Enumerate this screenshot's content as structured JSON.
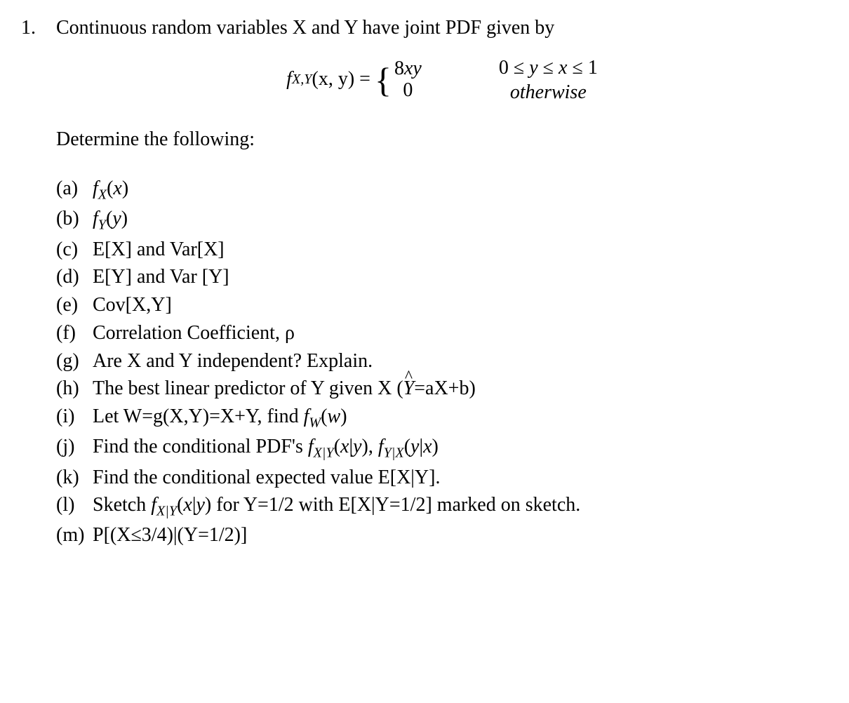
{
  "problem": {
    "number": "1.",
    "intro": "Continuous random variables X and Y have joint PDF given by",
    "equation": {
      "lhs_f": "f",
      "lhs_sub": "X,Y",
      "lhs_args": "(x, y) = ",
      "case_top": "8xy",
      "case_bot": "0",
      "cond_top": "0 ≤ y ≤ x ≤ 1",
      "cond_bot": "otherwise"
    },
    "determine": "Determine the following:",
    "items": [
      {
        "label": "(a)",
        "html": "<span class='ital'>f<span class='sub'>X</span></span>(<span class='ital'>x</span>)"
      },
      {
        "label": "(b)",
        "html": "<span class='ital'>f<span class='sub'>Y</span></span>(<span class='ital'>y</span>)"
      },
      {
        "label": "(c)",
        "html": "E[X] and Var[X]"
      },
      {
        "label": "(d)",
        "html": "E[Y] and Var [Y]"
      },
      {
        "label": "(e)",
        "html": "Cov[X,Y]"
      },
      {
        "label": "(f)",
        "html": "Correlation Coefficient, ρ"
      },
      {
        "label": "(g)",
        "html": "Are X and Y independent? Explain."
      },
      {
        "label": "(h)",
        "html": "The best linear predictor of Y given X (<span class='ital hat'>Y</span>=aX+b)"
      },
      {
        "label": "(i)",
        "html": "Let W=g(X,Y)=X+Y, find <span class='ital'>f<span class='sub'>W</span></span>(<span class='ital'>w</span>)"
      },
      {
        "label": "(j)",
        "html": "Find the conditional PDF's <span class='ital'>f<span class='sub'>X|Y</span></span>(<span class='ital'>x</span>|<span class='ital'>y</span>), <span class='ital'>f<span class='sub'>Y|X</span></span>(<span class='ital'>y</span>|<span class='ital'>x</span>)"
      },
      {
        "label": "(k)",
        "html": "Find the conditional expected value E[X|Y]."
      },
      {
        "label": "(l)",
        "html": "Sketch <span class='ital'>f<span class='sub'>X|Y</span></span>(<span class='ital'>x</span>|<span class='ital'>y</span>) for Y=1/2 with E[X|Y=1/2] marked on sketch."
      },
      {
        "label": "(m)",
        "html": "P[(X≤3/4)|(Y=1/2)]"
      }
    ]
  }
}
